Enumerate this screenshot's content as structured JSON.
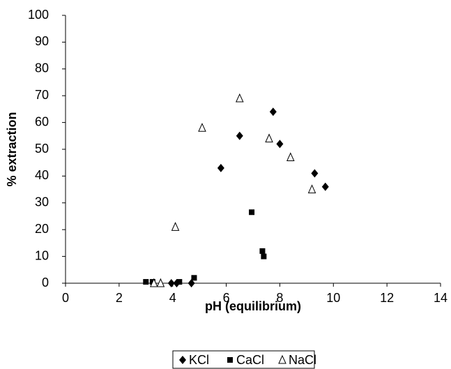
{
  "chart_data": {
    "type": "scatter",
    "x_label": "pH (equilibrium)",
    "y_label": "% extraction",
    "xlim": [
      0,
      14
    ],
    "xticks": [
      0,
      2,
      4,
      6,
      8,
      10,
      12,
      14
    ],
    "ylim": [
      0,
      100
    ],
    "yticks": [
      0,
      10,
      20,
      30,
      40,
      50,
      60,
      70,
      80,
      90,
      100
    ],
    "grid": false,
    "legend": "bottom",
    "series": [
      {
        "name": "KCl",
        "color": "#000000",
        "marker": "diamond",
        "x": [
          3.95,
          4.15,
          4.7,
          5.8,
          6.5,
          7.75,
          8.0,
          9.3,
          9.7
        ],
        "values": [
          0,
          0,
          0,
          43,
          55,
          64,
          52,
          41,
          36
        ]
      },
      {
        "name": "CaCl",
        "color": "#000000",
        "marker": "square",
        "x": [
          3.0,
          3.25,
          4.25,
          4.8,
          6.95,
          7.35,
          7.4
        ],
        "values": [
          0.5,
          0.5,
          0.5,
          2,
          26.5,
          12,
          10
        ]
      },
      {
        "name": "NaCl",
        "color": "#000000",
        "marker": "triangle",
        "x": [
          3.3,
          3.55,
          4.1,
          5.1,
          6.5,
          7.6,
          8.4,
          9.2
        ],
        "values": [
          0,
          0,
          21,
          58,
          69,
          54,
          47,
          35
        ]
      }
    ]
  }
}
